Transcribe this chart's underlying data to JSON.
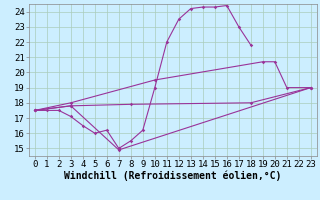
{
  "background_color": "#cceeff",
  "grid_color": "#aaccbb",
  "line_color": "#993399",
  "xlabel": "Windchill (Refroidissement éolien,°C)",
  "xlim": [
    -0.5,
    23.5
  ],
  "ylim": [
    14.5,
    24.5
  ],
  "yticks": [
    15,
    16,
    17,
    18,
    19,
    20,
    21,
    22,
    23,
    24
  ],
  "xticks": [
    0,
    1,
    2,
    3,
    4,
    5,
    6,
    7,
    8,
    9,
    10,
    11,
    12,
    13,
    14,
    15,
    16,
    17,
    18,
    19,
    20,
    21,
    22,
    23
  ],
  "tick_fontsize": 6.5,
  "label_fontsize": 7,
  "line1_x": [
    0,
    1,
    2,
    3,
    4,
    5,
    6,
    7,
    8,
    9,
    10,
    11,
    12,
    13,
    14,
    15,
    16,
    17,
    18
  ],
  "line1_y": [
    17.5,
    17.5,
    17.5,
    17.1,
    16.5,
    16.0,
    16.2,
    15.0,
    15.5,
    16.2,
    19.0,
    22.0,
    23.5,
    24.2,
    24.3,
    24.3,
    24.4,
    23.0,
    21.8
  ],
  "line2_x": [
    0,
    3,
    10,
    19,
    20,
    21,
    23
  ],
  "line2_y": [
    17.5,
    18.0,
    19.5,
    20.7,
    20.7,
    19.0,
    19.0
  ],
  "line3_x": [
    0,
    3,
    8,
    18,
    23
  ],
  "line3_y": [
    17.5,
    17.8,
    17.9,
    18.0,
    19.0
  ],
  "line4_x": [
    0,
    3,
    7,
    23
  ],
  "line4_y": [
    17.5,
    17.8,
    14.9,
    19.0
  ]
}
